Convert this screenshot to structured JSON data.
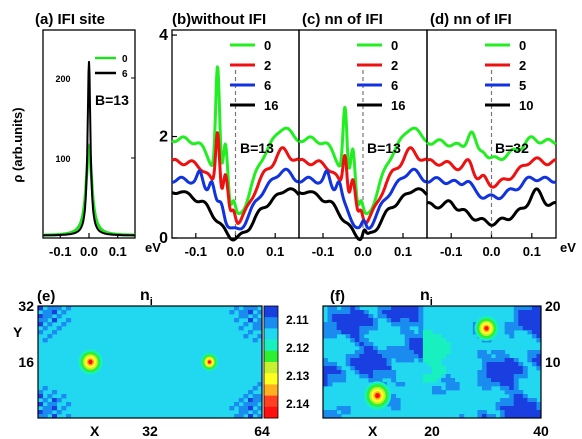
{
  "chart_data": [
    {
      "id": "a",
      "type": "line",
      "title": "(a) IFI site",
      "xlabel": "eV",
      "ylabel": "ρ (arb.units)",
      "xlim": [
        -0.16,
        0.16
      ],
      "ylim": [
        0,
        260
      ],
      "xticks": [
        -0.1,
        0.0,
        0.1
      ],
      "xtick_labels": [
        "-0.1",
        "0.0",
        "0.1"
      ],
      "yticks": [
        100,
        200
      ],
      "ytick_labels": [
        "100",
        "200"
      ],
      "annotation": "B=13",
      "series": [
        {
          "name": "0",
          "color": "#22dd22",
          "center": 0.0,
          "peak": 110,
          "width": 0.012
        },
        {
          "name": "6",
          "color": "#000000",
          "center": 0.0,
          "peak": 218,
          "width": 0.006
        }
      ]
    },
    {
      "id": "b",
      "type": "line",
      "title": "(b)without IFI",
      "xlabel": "",
      "ylabel": "",
      "xlim": [
        -0.16,
        0.16
      ],
      "ylim": [
        0,
        4.1
      ],
      "xticks": [
        -0.1,
        0.0,
        0.1
      ],
      "xtick_labels": [
        "-0.1",
        "0.0",
        "0.1"
      ],
      "yticks": [
        0,
        2,
        4
      ],
      "ytick_labels": [
        "0",
        "2",
        "4"
      ],
      "annotation": "B=13",
      "series": [
        {
          "name": "0",
          "color": "#22ee22",
          "offset": 1.95,
          "valley": [
            0.0,
            1.55,
            0.04
          ],
          "peaks": [
            [
              -0.045,
              2.2,
              0.005
            ],
            [
              -0.025,
              1.2,
              0.006
            ],
            [
              -0.005,
              0.3,
              0.005
            ],
            [
              0.12,
              0.25,
              0.015
            ]
          ]
        },
        {
          "name": "2",
          "color": "#ee1111",
          "offset": 1.5,
          "valley": [
            0.0,
            1.2,
            0.04
          ],
          "peaks": [
            [
              -0.045,
              1.25,
              0.005
            ],
            [
              -0.025,
              0.7,
              0.006
            ],
            [
              -0.005,
              0.25,
              0.005
            ],
            [
              0.12,
              0.25,
              0.015
            ]
          ]
        },
        {
          "name": "6",
          "color": "#1133dd",
          "offset": 1.15,
          "valley": [
            0.0,
            1.0,
            0.04
          ],
          "peaks": [
            [
              -0.09,
              0.2,
              0.006
            ],
            [
              -0.06,
              0.3,
              0.006
            ],
            [
              -0.035,
              0.2,
              0.006
            ],
            [
              0.12,
              0.2,
              0.015
            ]
          ]
        },
        {
          "name": "16",
          "color": "#000000",
          "offset": 0.85,
          "valley": [
            0.0,
            0.85,
            0.045
          ],
          "peaks": [
            [
              -0.14,
              0.1,
              0.01
            ],
            [
              0.13,
              0.15,
              0.012
            ]
          ]
        }
      ]
    },
    {
      "id": "c",
      "type": "line",
      "title": "(c)   nn of IFI",
      "xlabel": "",
      "ylabel": "",
      "xlim": [
        -0.16,
        0.16
      ],
      "ylim": [
        0,
        4.1
      ],
      "xticks": [
        -0.1,
        0.0,
        0.1
      ],
      "xtick_labels": [
        "-0.1",
        "0.0",
        "0.1"
      ],
      "yticks": [],
      "ytick_labels": [],
      "annotation": "B=13",
      "series": [
        {
          "name": "0",
          "color": "#22ee22",
          "offset": 1.95,
          "valley": [
            0.0,
            1.55,
            0.04
          ],
          "peaks": [
            [
              -0.045,
              1.4,
              0.005
            ],
            [
              -0.025,
              1.1,
              0.006
            ],
            [
              -0.005,
              0.3,
              0.005
            ],
            [
              0.12,
              0.25,
              0.015
            ]
          ]
        },
        {
          "name": "2",
          "color": "#ee1111",
          "offset": 1.5,
          "valley": [
            0.0,
            1.2,
            0.04
          ],
          "peaks": [
            [
              -0.045,
              0.8,
              0.005
            ],
            [
              -0.025,
              0.6,
              0.006
            ],
            [
              -0.005,
              0.25,
              0.005
            ],
            [
              0.12,
              0.25,
              0.015
            ]
          ]
        },
        {
          "name": "6",
          "color": "#1133dd",
          "offset": 1.15,
          "valley": [
            0.0,
            1.0,
            0.04
          ],
          "peaks": [
            [
              -0.09,
              0.2,
              0.006
            ],
            [
              -0.06,
              0.3,
              0.006
            ],
            [
              0.002,
              0.15,
              0.005
            ],
            [
              0.12,
              0.2,
              0.015
            ]
          ]
        },
        {
          "name": "16",
          "color": "#000000",
          "offset": 0.85,
          "valley": [
            0.0,
            0.85,
            0.045
          ],
          "peaks": [
            [
              -0.14,
              0.1,
              0.01
            ],
            [
              0.003,
              0.15,
              0.004
            ],
            [
              0.13,
              0.15,
              0.012
            ]
          ]
        }
      ]
    },
    {
      "id": "d",
      "type": "line",
      "title": "(d)   nn of IFI",
      "xlabel": "eV",
      "ylabel": "",
      "xlim": [
        -0.16,
        0.16
      ],
      "ylim": [
        0,
        4.1
      ],
      "xticks": [
        -0.1,
        0.0,
        0.1
      ],
      "xtick_labels": [
        "-0.1",
        "0.0",
        "0.1"
      ],
      "yticks": [],
      "ytick_labels": [],
      "annotation": "B=32",
      "series": [
        {
          "name": "0",
          "color": "#22ee22",
          "offset": 1.9,
          "valley": [
            0.0,
            0.35,
            0.05
          ],
          "peaks": [
            [
              -0.05,
              0.4,
              0.01
            ],
            [
              -0.02,
              0.15,
              0.008
            ],
            [
              0.1,
              0.1,
              0.015
            ]
          ]
        },
        {
          "name": "2",
          "color": "#ee1111",
          "offset": 1.5,
          "valley": [
            0.0,
            0.45,
            0.05
          ],
          "peaks": [
            [
              -0.055,
              0.25,
              0.01
            ],
            [
              -0.02,
              0.1,
              0.008
            ],
            [
              0.1,
              0.1,
              0.015
            ]
          ]
        },
        {
          "name": "5",
          "color": "#1133dd",
          "offset": 1.15,
          "valley": [
            0.0,
            0.35,
            0.05
          ],
          "peaks": [
            [
              -0.06,
              0.15,
              0.01
            ],
            [
              0.1,
              0.08,
              0.015
            ]
          ]
        },
        {
          "name": "10",
          "color": "#000000",
          "offset": 0.65,
          "valley": [
            0.0,
            0.35,
            0.05
          ],
          "peaks": [
            [
              -0.1,
              0.1,
              0.01
            ],
            [
              0.11,
              0.3,
              0.015
            ]
          ]
        }
      ]
    },
    {
      "id": "e",
      "type": "heatmap",
      "title": "(e)",
      "heading": "n",
      "heading_sub": "i",
      "xlabel": "X",
      "ylabel": "Y",
      "xlim": [
        0,
        64
      ],
      "ylim": [
        0,
        32
      ],
      "xticks": [
        32,
        64
      ],
      "xtick_labels": [
        "32",
        "64"
      ],
      "yticks": [
        16,
        32
      ],
      "ytick_labels": [
        "16",
        "32"
      ],
      "hotspots": [
        [
          15,
          16,
          3.5
        ],
        [
          49,
          16,
          2.5
        ]
      ],
      "colorbar": {
        "labels": [
          "2.11",
          "2.12",
          "2.13",
          "2.14"
        ],
        "colors": [
          "#1a3fe0",
          "#1a8cf0",
          "#22d8f0",
          "#18f0c0",
          "#2ef02e",
          "#c8f02e",
          "#ffff20",
          "#ffb020",
          "#ff4020",
          "#ff1010"
        ]
      }
    },
    {
      "id": "f",
      "type": "heatmap",
      "title": "(f)",
      "heading": "n",
      "heading_sub": "i",
      "xlabel": "X",
      "ylabel": "",
      "xlim": [
        0,
        40
      ],
      "ylim": [
        0,
        20
      ],
      "xticks": [
        20,
        40
      ],
      "xtick_labels": [
        "20",
        "40"
      ],
      "yticks": [
        10,
        20
      ],
      "ytick_labels": [
        "10",
        "20"
      ],
      "hotspots": [
        [
          10,
          4,
          2.5
        ],
        [
          30,
          16,
          2.2
        ]
      ]
    }
  ]
}
